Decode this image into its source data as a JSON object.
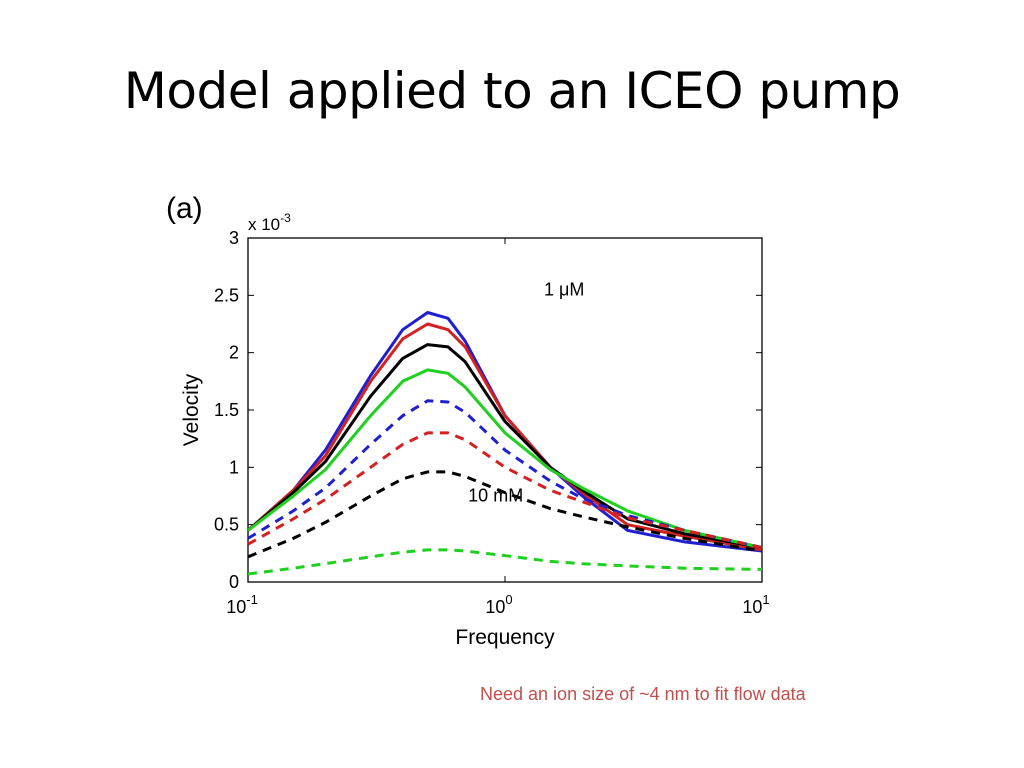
{
  "slide": {
    "title": "Model applied to an ICEO pump",
    "footnote": "Need an ion size of ~4 nm to fit flow data"
  },
  "chart_data": {
    "type": "line",
    "panel_label": "(a)",
    "xlabel": "Frequency",
    "ylabel": "Velocity",
    "y_multiplier_label": "x 10",
    "y_multiplier_exp": "-3",
    "xscale": "log",
    "xlim": [
      0.1,
      10
    ],
    "ylim": [
      0,
      3
    ],
    "x_ticks": [
      {
        "value": 0.1,
        "base": "10",
        "exp": "-1"
      },
      {
        "value": 1,
        "base": "10",
        "exp": "0"
      },
      {
        "value": 10,
        "base": "10",
        "exp": "1"
      }
    ],
    "y_ticks": [
      {
        "value": 0,
        "label": "0"
      },
      {
        "value": 0.5,
        "label": "0.5"
      },
      {
        "value": 1,
        "label": "1"
      },
      {
        "value": 1.5,
        "label": "1.5"
      },
      {
        "value": 2,
        "label": "2"
      },
      {
        "value": 2.5,
        "label": "2.5"
      },
      {
        "value": 3,
        "label": "3"
      }
    ],
    "grid": false,
    "x": [
      0.1,
      0.15,
      0.2,
      0.3,
      0.4,
      0.5,
      0.6,
      0.7,
      1.0,
      1.5,
      2.0,
      3.0,
      5.0,
      10.0
    ],
    "series": [
      {
        "color": "#1f1fd0",
        "dash": false,
        "values": [
          0.45,
          0.8,
          1.15,
          1.8,
          2.2,
          2.35,
          2.3,
          2.1,
          1.45,
          1.0,
          0.75,
          0.45,
          0.35,
          0.27
        ]
      },
      {
        "color": "#d42020",
        "dash": false,
        "values": [
          0.45,
          0.8,
          1.1,
          1.75,
          2.12,
          2.25,
          2.2,
          2.05,
          1.45,
          1.0,
          0.78,
          0.5,
          0.4,
          0.28
        ]
      },
      {
        "color": "#000000",
        "dash": false,
        "values": [
          0.45,
          0.78,
          1.05,
          1.62,
          1.95,
          2.07,
          2.05,
          1.92,
          1.4,
          1.0,
          0.8,
          0.55,
          0.42,
          0.3
        ]
      },
      {
        "color": "#1fd01f",
        "dash": false,
        "values": [
          0.45,
          0.75,
          0.98,
          1.45,
          1.75,
          1.85,
          1.82,
          1.7,
          1.3,
          0.98,
          0.82,
          0.62,
          0.45,
          0.3
        ]
      },
      {
        "color": "#1f1fd0",
        "dash": true,
        "values": [
          0.38,
          0.62,
          0.82,
          1.2,
          1.45,
          1.58,
          1.57,
          1.48,
          1.15,
          0.88,
          0.73,
          0.58,
          0.45,
          0.3
        ]
      },
      {
        "color": "#d42020",
        "dash": true,
        "values": [
          0.33,
          0.55,
          0.72,
          1.0,
          1.2,
          1.3,
          1.3,
          1.24,
          1.0,
          0.8,
          0.7,
          0.56,
          0.45,
          0.3
        ]
      },
      {
        "color": "#000000",
        "dash": true,
        "values": [
          0.22,
          0.38,
          0.52,
          0.75,
          0.9,
          0.96,
          0.96,
          0.92,
          0.78,
          0.64,
          0.57,
          0.48,
          0.38,
          0.27
        ]
      },
      {
        "color": "#1fd01f",
        "dash": true,
        "values": [
          0.07,
          0.12,
          0.16,
          0.22,
          0.26,
          0.28,
          0.28,
          0.27,
          0.23,
          0.18,
          0.16,
          0.14,
          0.12,
          0.11
        ]
      }
    ],
    "annotations": [
      {
        "text": "1 μM",
        "x": 1.7,
        "y": 2.5
      },
      {
        "text": "10 mM",
        "x": 0.92,
        "y": 0.7
      }
    ]
  }
}
